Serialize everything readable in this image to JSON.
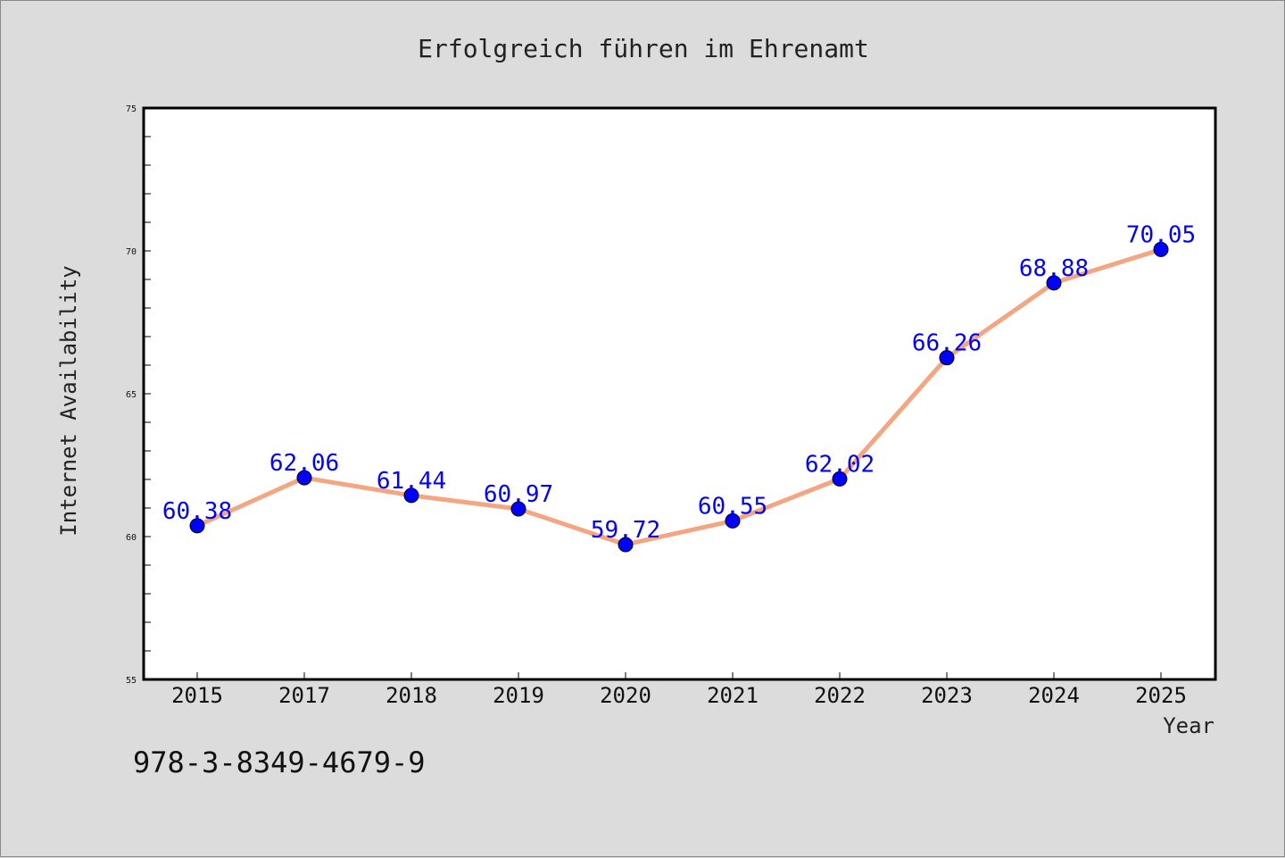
{
  "chart_data": {
    "type": "line",
    "title": "Erfolgreich führen im Ehrenamt",
    "xlabel": "Year",
    "ylabel": "Internet Availability",
    "categories": [
      "2015",
      "2017",
      "2018",
      "2019",
      "2020",
      "2021",
      "2022",
      "2023",
      "2024",
      "2025"
    ],
    "series": [
      {
        "values": [
          60.38,
          62.06,
          61.44,
          60.97,
          59.72,
          60.55,
          62.02,
          66.26,
          68.88,
          70.05
        ],
        "data_labels": [
          "60.38",
          "62.06",
          "61.44",
          "60.97",
          "59.72",
          "60.55",
          "62.02",
          "66.26",
          "68.88",
          "70.05"
        ],
        "line_color": "#f4a582",
        "marker_color": "#0000ff"
      }
    ],
    "ylim": [
      55,
      75
    ],
    "yticks": [
      "55",
      "60",
      "65",
      "70",
      "75"
    ],
    "grid": false,
    "legend": "none"
  },
  "annotation": "978-3-8349-4679-9"
}
